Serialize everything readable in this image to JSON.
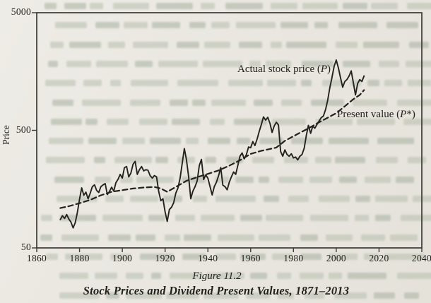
{
  "colors": {
    "paper": "#eae7e1",
    "ink": "#23221e",
    "axis": "#3b3935",
    "bleedthrough_light": "#b6bead",
    "bleedthrough_dark": "#a7b1a0"
  },
  "figure_caption": {
    "label": "Figure 11.2",
    "title": "Stock Prices and Dividend Present Values, 1871–2013"
  },
  "chart_data": {
    "type": "line",
    "title": "",
    "xlabel": "",
    "ylabel": "Price",
    "y_scale": "log",
    "grid": false,
    "legend_position": "in-chart-annotations",
    "xlim": [
      1860,
      2040
    ],
    "ylim": [
      50,
      5000
    ],
    "x_ticks": [
      1860,
      1880,
      1900,
      1920,
      1940,
      1960,
      1980,
      2000,
      2020,
      2040
    ],
    "y_ticks": [
      50,
      500,
      5000
    ],
    "series": [
      {
        "name": "Actual stock price (P)",
        "line_style": "solid",
        "label_parts": {
          "prefix": "Actual stock price (",
          "symbol": "P",
          "suffix": ")"
        },
        "points": [
          [
            1871,
            87
          ],
          [
            1872,
            94
          ],
          [
            1873,
            89
          ],
          [
            1874,
            96
          ],
          [
            1875,
            88
          ],
          [
            1876,
            83
          ],
          [
            1877,
            74
          ],
          [
            1878,
            82
          ],
          [
            1879,
            100
          ],
          [
            1880,
            130
          ],
          [
            1881,
            162
          ],
          [
            1882,
            140
          ],
          [
            1883,
            149
          ],
          [
            1884,
            131
          ],
          [
            1885,
            146
          ],
          [
            1886,
            166
          ],
          [
            1887,
            172
          ],
          [
            1888,
            154
          ],
          [
            1889,
            148
          ],
          [
            1890,
            166
          ],
          [
            1891,
            172
          ],
          [
            1892,
            176
          ],
          [
            1893,
            142
          ],
          [
            1894,
            151
          ],
          [
            1895,
            164
          ],
          [
            1896,
            152
          ],
          [
            1897,
            179
          ],
          [
            1898,
            192
          ],
          [
            1899,
            211
          ],
          [
            1900,
            196
          ],
          [
            1901,
            241
          ],
          [
            1902,
            246
          ],
          [
            1903,
            201
          ],
          [
            1904,
            216
          ],
          [
            1905,
            257
          ],
          [
            1906,
            272
          ],
          [
            1907,
            211
          ],
          [
            1908,
            231
          ],
          [
            1909,
            246
          ],
          [
            1910,
            226
          ],
          [
            1911,
            231
          ],
          [
            1912,
            229
          ],
          [
            1913,
            206
          ],
          [
            1914,
            196
          ],
          [
            1915,
            206
          ],
          [
            1916,
            201
          ],
          [
            1917,
            151
          ],
          [
            1918,
            126
          ],
          [
            1919,
            131
          ],
          [
            1920,
            101
          ],
          [
            1921,
            84
          ],
          [
            1922,
            106
          ],
          [
            1923,
            111
          ],
          [
            1924,
            121
          ],
          [
            1925,
            146
          ],
          [
            1926,
            161
          ],
          [
            1927,
            196
          ],
          [
            1928,
            262
          ],
          [
            1929,
            350
          ],
          [
            1930,
            281
          ],
          [
            1931,
            201
          ],
          [
            1932,
            131
          ],
          [
            1933,
            152
          ],
          [
            1934,
            166
          ],
          [
            1935,
            186
          ],
          [
            1936,
            251
          ],
          [
            1937,
            283
          ],
          [
            1938,
            191
          ],
          [
            1939,
            209
          ],
          [
            1940,
            196
          ],
          [
            1941,
            166
          ],
          [
            1942,
            141
          ],
          [
            1943,
            166
          ],
          [
            1944,
            181
          ],
          [
            1945,
            206
          ],
          [
            1946,
            241
          ],
          [
            1947,
            171
          ],
          [
            1948,
            166
          ],
          [
            1949,
            156
          ],
          [
            1950,
            181
          ],
          [
            1951,
            201
          ],
          [
            1952,
            221
          ],
          [
            1953,
            211
          ],
          [
            1954,
            251
          ],
          [
            1955,
            301
          ],
          [
            1956,
            321
          ],
          [
            1957,
            286
          ],
          [
            1958,
            311
          ],
          [
            1959,
            361
          ],
          [
            1960,
            356
          ],
          [
            1961,
            401
          ],
          [
            1962,
            371
          ],
          [
            1963,
            421
          ],
          [
            1964,
            490
          ],
          [
            1965,
            560
          ],
          [
            1966,
            650
          ],
          [
            1967,
            610
          ],
          [
            1968,
            645
          ],
          [
            1969,
            575
          ],
          [
            1970,
            480
          ],
          [
            1971,
            545
          ],
          [
            1972,
            585
          ],
          [
            1973,
            555
          ],
          [
            1974,
            330
          ],
          [
            1975,
            301
          ],
          [
            1976,
            341
          ],
          [
            1977,
            311
          ],
          [
            1978,
            301
          ],
          [
            1979,
            316
          ],
          [
            1980,
            291
          ],
          [
            1981,
            296
          ],
          [
            1982,
            280
          ],
          [
            1983,
            301
          ],
          [
            1984,
            311
          ],
          [
            1985,
            351
          ],
          [
            1986,
            451
          ],
          [
            1987,
            551
          ],
          [
            1988,
            471
          ],
          [
            1989,
            541
          ],
          [
            1990,
            521
          ],
          [
            1991,
            561
          ],
          [
            1992,
            601
          ],
          [
            1993,
            641
          ],
          [
            1994,
            661
          ],
          [
            1995,
            751
          ],
          [
            1996,
            901
          ],
          [
            1997,
            1151
          ],
          [
            1998,
            1401
          ],
          [
            1999,
            1751
          ],
          [
            2000,
            1980
          ],
          [
            2001,
            1700
          ],
          [
            2002,
            1400
          ],
          [
            2003,
            1160
          ],
          [
            2004,
            1300
          ],
          [
            2005,
            1350
          ],
          [
            2006,
            1450
          ],
          [
            2007,
            1600
          ],
          [
            2008,
            1270
          ],
          [
            2009,
            1000
          ],
          [
            2010,
            1250
          ],
          [
            2011,
            1350
          ],
          [
            2012,
            1300
          ],
          [
            2013,
            1450
          ]
        ]
      },
      {
        "name": "Present value (P*)",
        "line_style": "dashed",
        "label_parts": {
          "prefix": "Present value (",
          "symbol": "P",
          "suffix": "*)"
        },
        "points": [
          [
            1871,
            109
          ],
          [
            1875,
            113
          ],
          [
            1880,
            120
          ],
          [
            1885,
            128
          ],
          [
            1890,
            140
          ],
          [
            1895,
            150
          ],
          [
            1900,
            155
          ],
          [
            1905,
            160
          ],
          [
            1910,
            163
          ],
          [
            1915,
            165
          ],
          [
            1918,
            160
          ],
          [
            1921,
            150
          ],
          [
            1925,
            165
          ],
          [
            1930,
            186
          ],
          [
            1935,
            200
          ],
          [
            1940,
            213
          ],
          [
            1945,
            228
          ],
          [
            1950,
            250
          ],
          [
            1955,
            278
          ],
          [
            1960,
            315
          ],
          [
            1965,
            335
          ],
          [
            1970,
            350
          ],
          [
            1972,
            357
          ],
          [
            1976,
            407
          ],
          [
            1980,
            445
          ],
          [
            1982,
            466
          ],
          [
            1987,
            520
          ],
          [
            1992,
            585
          ],
          [
            1996,
            640
          ],
          [
            2000,
            700
          ],
          [
            2004,
            800
          ],
          [
            2008,
            920
          ],
          [
            2011,
            1000
          ],
          [
            2013,
            1100
          ]
        ]
      }
    ]
  }
}
